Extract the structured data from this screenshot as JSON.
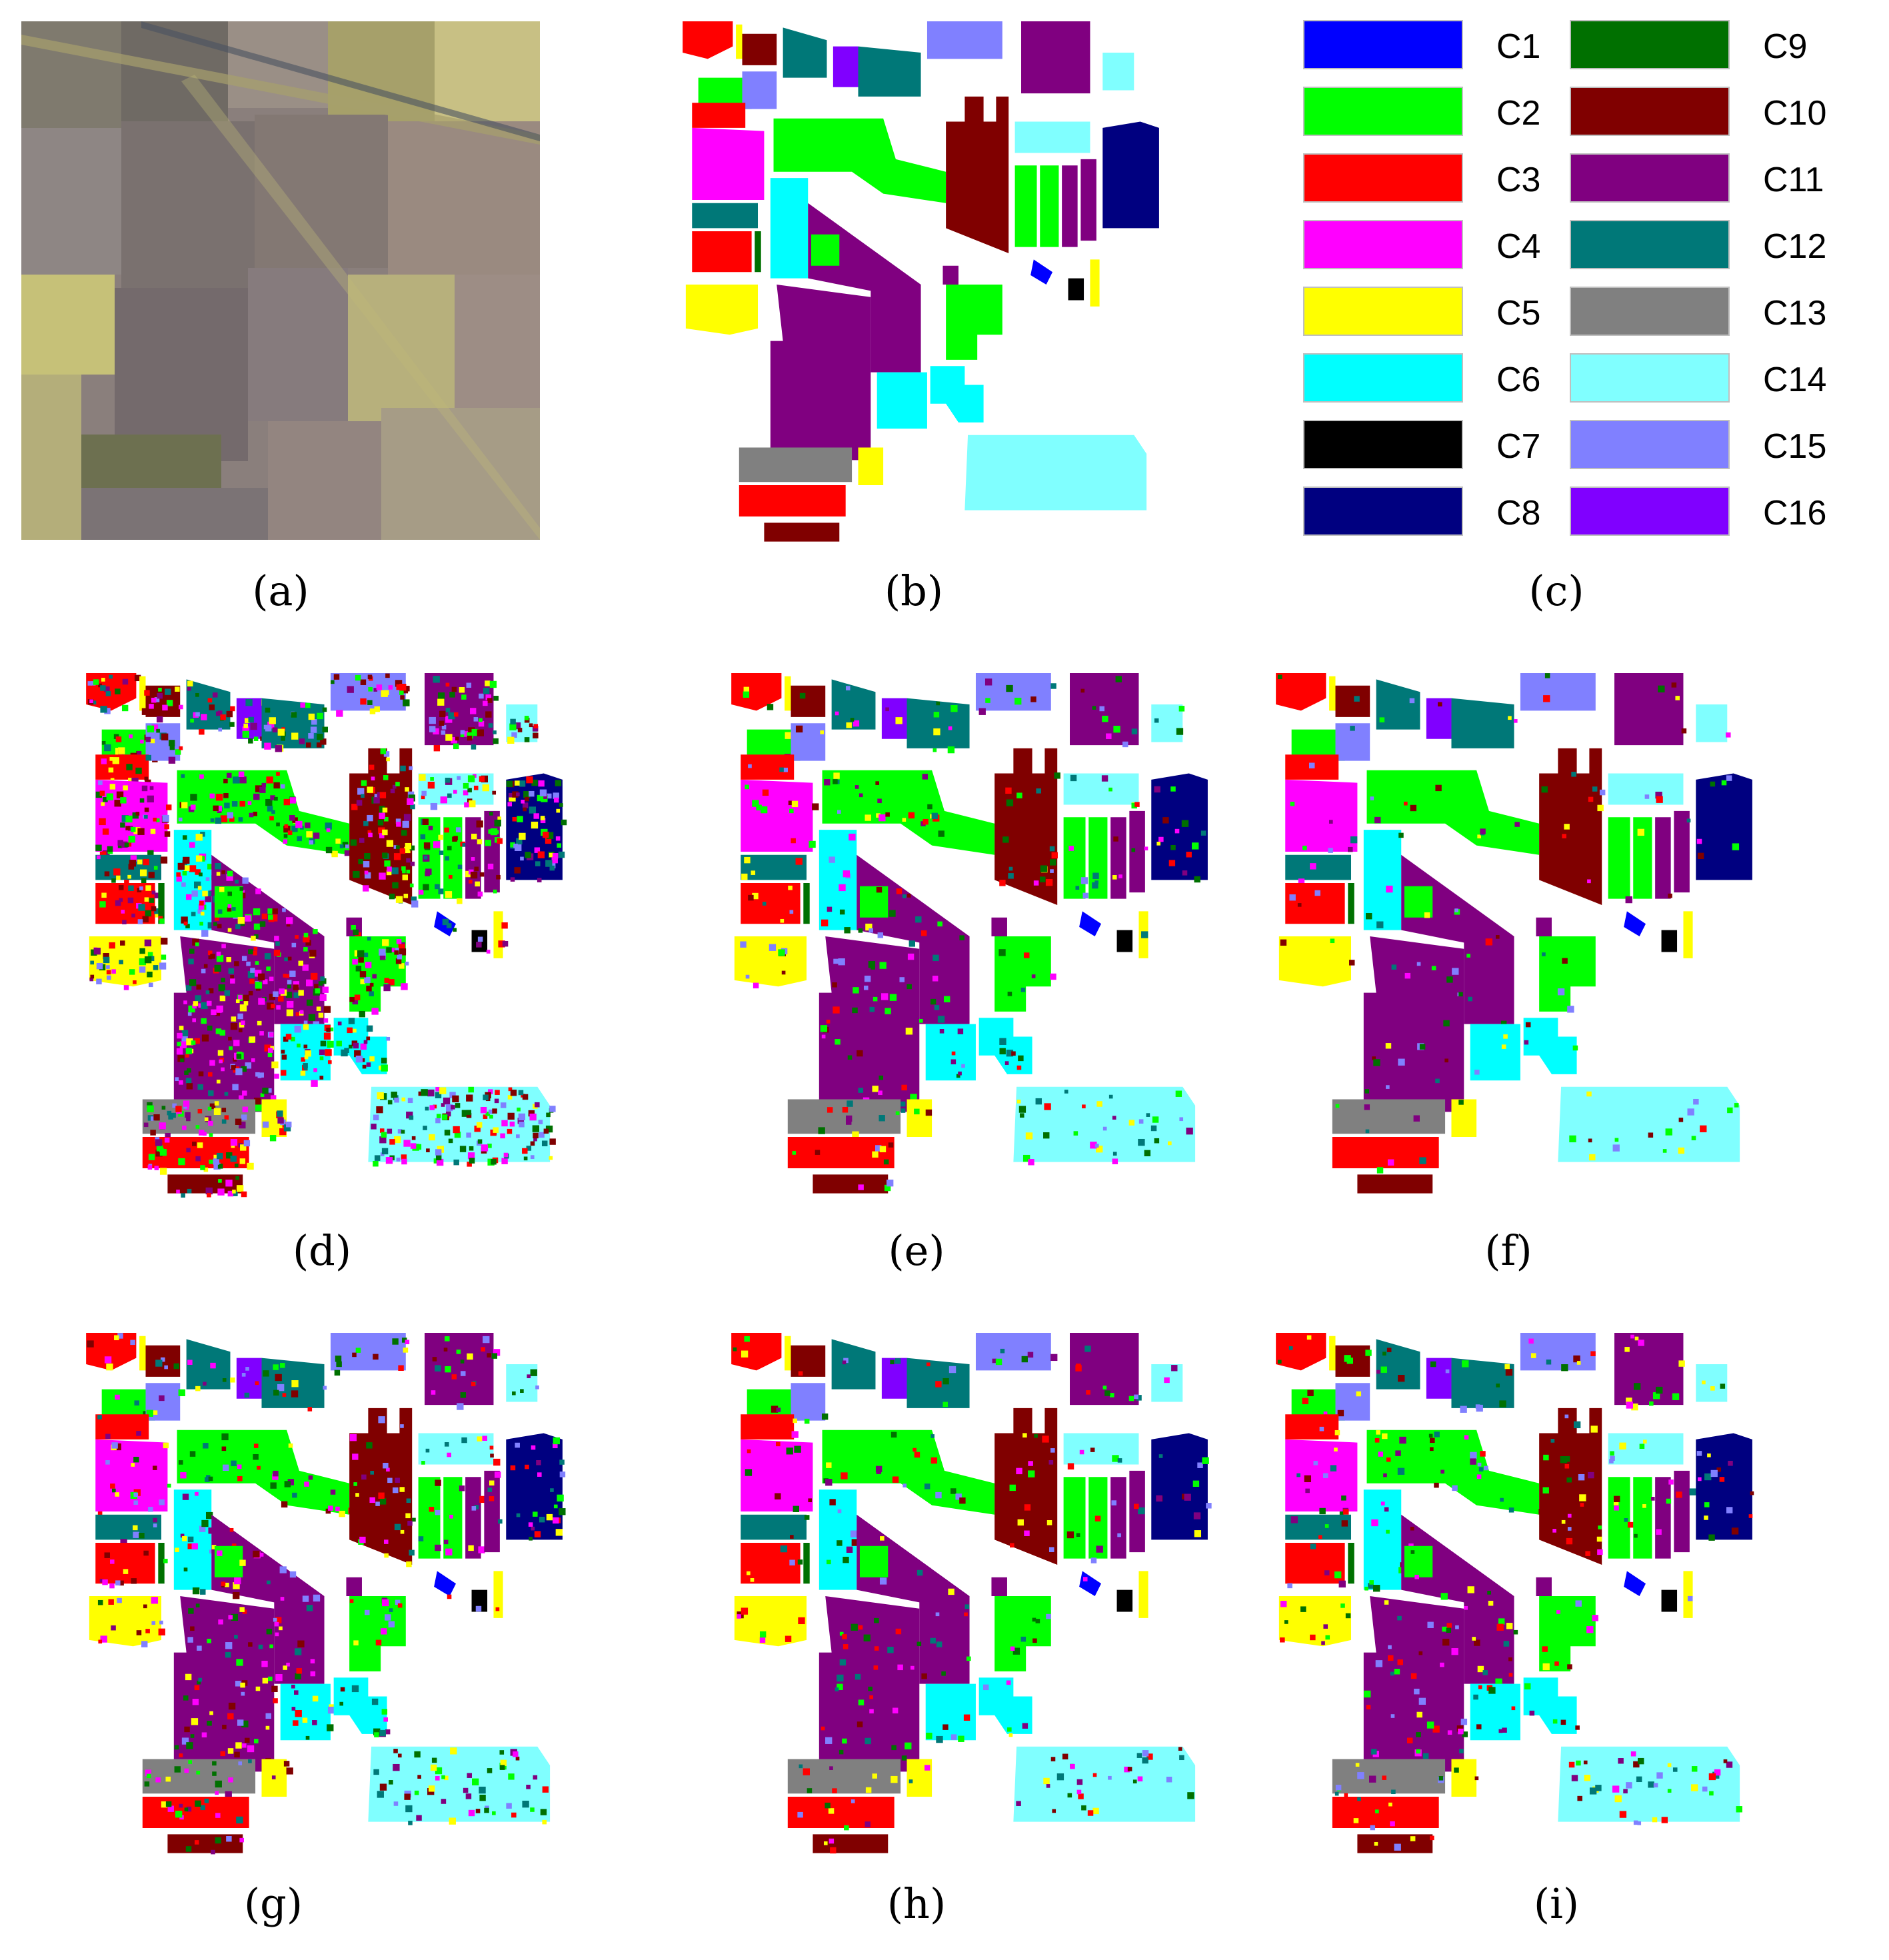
{
  "figure": {
    "captions": {
      "a": "(a)",
      "b": "(b)",
      "c": "(c)",
      "d": "(d)",
      "e": "(e)",
      "f": "(f)",
      "g": "(g)",
      "h": "(h)",
      "i": "(i)"
    },
    "legend": [
      {
        "label": "C1",
        "color": "#0000ff"
      },
      {
        "label": "C2",
        "color": "#00ff00"
      },
      {
        "label": "C3",
        "color": "#ff0000"
      },
      {
        "label": "C4",
        "color": "#ff00ff"
      },
      {
        "label": "C5",
        "color": "#ffff00"
      },
      {
        "label": "C6",
        "color": "#00ffff"
      },
      {
        "label": "C7",
        "color": "#000000"
      },
      {
        "label": "C8",
        "color": "#000080"
      },
      {
        "label": "C9",
        "color": "#007000"
      },
      {
        "label": "C10",
        "color": "#800000"
      },
      {
        "label": "C11",
        "color": "#800080"
      },
      {
        "label": "C12",
        "color": "#007878"
      },
      {
        "label": "C13",
        "color": "#808080"
      },
      {
        "label": "C14",
        "color": "#80ffff"
      },
      {
        "label": "C15",
        "color": "#8080ff"
      },
      {
        "label": "C16",
        "color": "#8000ff"
      }
    ]
  }
}
